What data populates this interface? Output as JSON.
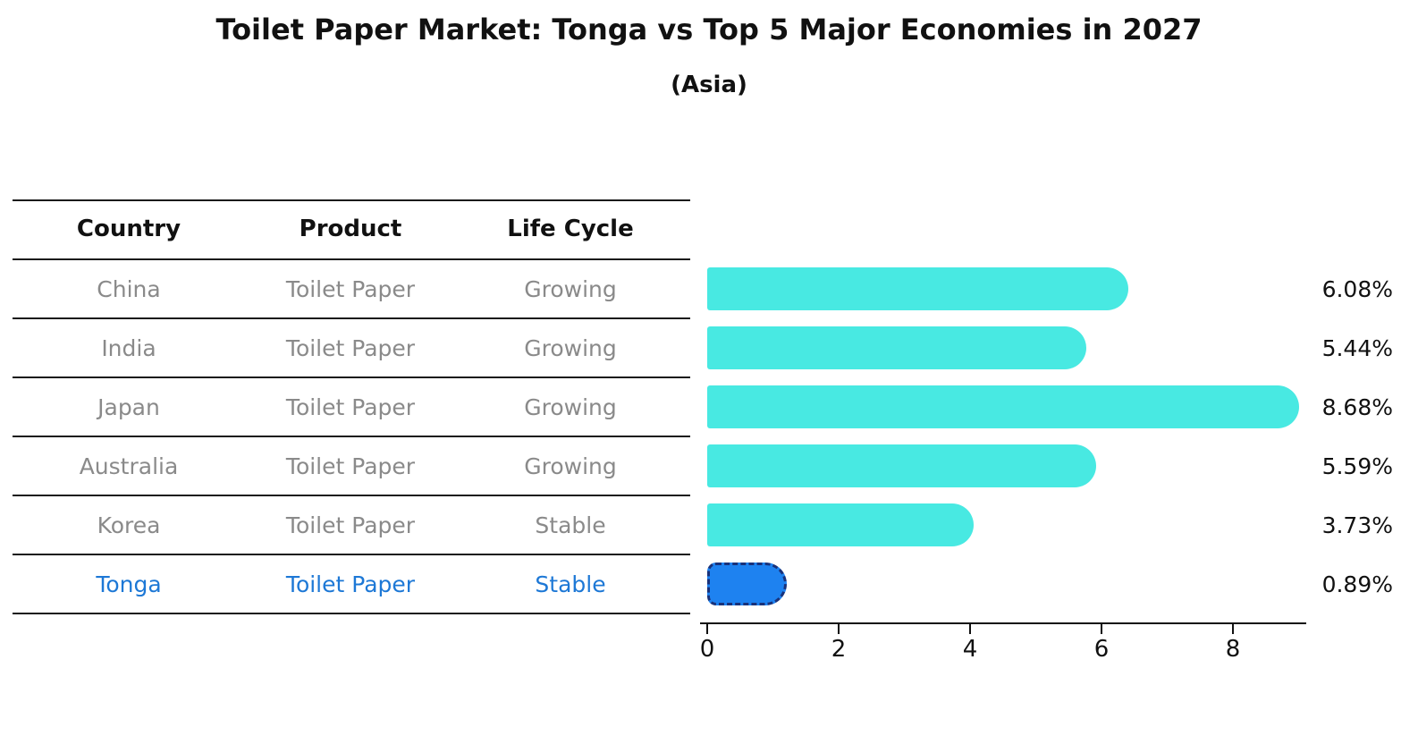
{
  "page": {
    "title": "Toilet Paper Market: Tonga vs Top 5 Major Economies in 2027",
    "subtitle": "(Asia)"
  },
  "chart_data": {
    "type": "bar",
    "orientation": "horizontal",
    "title": "Toilet Paper Market: Tonga vs Top 5 Major Economies in 2027",
    "subtitle": "(Asia)",
    "categories": [
      "China",
      "India",
      "Japan",
      "Australia",
      "Korea",
      "Tonga"
    ],
    "values": [
      6.08,
      5.44,
      8.68,
      5.59,
      3.73,
      0.89
    ],
    "value_labels": [
      "6.08%",
      "5.44%",
      "8.68%",
      "5.59%",
      "3.73%",
      "0.89%"
    ],
    "table_columns": [
      "Country",
      "Product",
      "Life Cycle"
    ],
    "table_rows": [
      [
        "China",
        "Toilet Paper",
        "Growing"
      ],
      [
        "India",
        "Toilet Paper",
        "Growing"
      ],
      [
        "Japan",
        "Toilet Paper",
        "Growing"
      ],
      [
        "Australia",
        "Toilet Paper",
        "Growing"
      ],
      [
        "Korea",
        "Toilet Paper",
        "Stable"
      ],
      [
        "Tonga",
        "Toilet Paper",
        "Stable"
      ]
    ],
    "highlight_index": 5,
    "xticks": [
      "0",
      "2",
      "4",
      "6",
      "8"
    ],
    "xtick_values": [
      0,
      2,
      4,
      6,
      8
    ],
    "xlim": [
      0,
      9.2
    ],
    "grid": false,
    "legend": null,
    "colors": {
      "bar": "#48e9e2",
      "highlight_bar": "#1e82f0",
      "highlight_border": "#19327a",
      "highlight_text": "#1d78d6",
      "cell_text": "#8a8a8a",
      "axis_text": "#111111"
    }
  }
}
